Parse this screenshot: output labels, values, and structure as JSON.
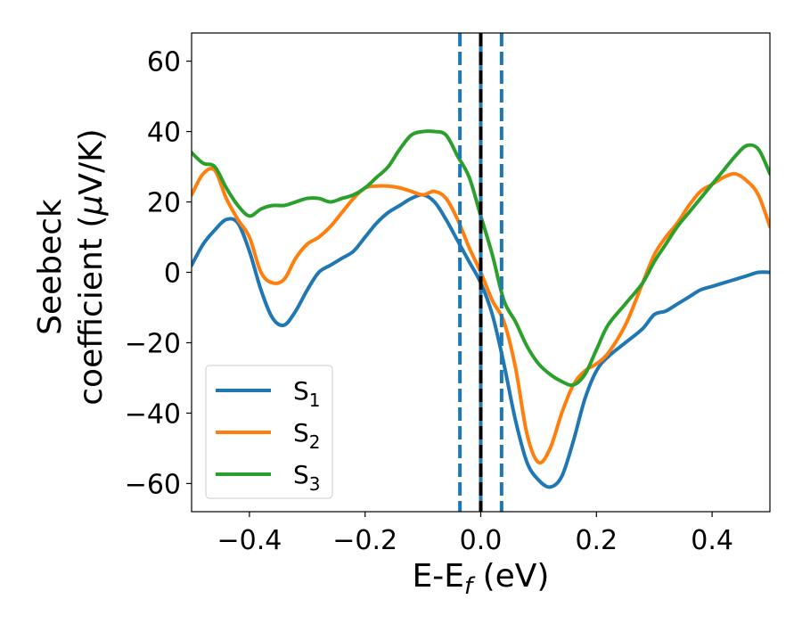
{
  "chart_data": {
    "type": "line",
    "title": "",
    "xlabel": {
      "main": "E-E",
      "sub": "f",
      "unit": " (eV)"
    },
    "ylabel": {
      "line1": "Seebeck",
      "line2_pre": "coefficient  (",
      "mu": "μ",
      "line2_post": "V/K)"
    },
    "xlim": [
      -0.5,
      0.5
    ],
    "ylim": [
      -68,
      68
    ],
    "xticks": [
      -0.4,
      -0.2,
      0.0,
      0.2,
      0.4
    ],
    "xtick_labels": [
      "−0.4",
      "−0.2",
      "0.0",
      "0.2",
      "0.4"
    ],
    "yticks": [
      60,
      40,
      20,
      0,
      -20,
      -40,
      -60
    ],
    "ytick_labels": [
      "60",
      "40",
      "20",
      "0",
      "−20",
      "−40",
      "−60"
    ],
    "grid": false,
    "legend_position": "lower-left",
    "vlines": [
      {
        "x": -0.036,
        "style": "dashed",
        "color": "#1f77b4"
      },
      {
        "x": 0.0,
        "style": "solid",
        "color": "#1f77b4"
      },
      {
        "x": 0.0,
        "style": "dashed",
        "color": "#000000"
      },
      {
        "x": 0.036,
        "style": "dashed",
        "color": "#1f77b4"
      }
    ],
    "series": [
      {
        "name": "S",
        "sub": "1",
        "color": "#1f77b4",
        "x": [
          -0.5,
          -0.48,
          -0.46,
          -0.44,
          -0.42,
          -0.4,
          -0.38,
          -0.36,
          -0.34,
          -0.32,
          -0.3,
          -0.28,
          -0.26,
          -0.24,
          -0.22,
          -0.2,
          -0.18,
          -0.16,
          -0.14,
          -0.12,
          -0.1,
          -0.08,
          -0.06,
          -0.04,
          -0.02,
          0.0,
          0.02,
          0.04,
          0.06,
          0.08,
          0.1,
          0.12,
          0.14,
          0.16,
          0.18,
          0.2,
          0.22,
          0.25,
          0.28,
          0.3,
          0.32,
          0.34,
          0.36,
          0.38,
          0.4,
          0.42,
          0.44,
          0.46,
          0.48,
          0.5
        ],
        "y": [
          2,
          8,
          12,
          15,
          14,
          6,
          -5,
          -13,
          -15,
          -11,
          -5,
          0,
          2,
          4,
          6,
          10,
          14,
          17,
          19,
          21,
          22,
          20,
          15,
          9,
          3,
          -3,
          -12,
          -26,
          -42,
          -54,
          -59,
          -61,
          -58,
          -48,
          -36,
          -28,
          -24,
          -20,
          -16,
          -12,
          -11,
          -9,
          -7,
          -5,
          -4,
          -3,
          -2,
          -1,
          0,
          0
        ]
      },
      {
        "name": "S",
        "sub": "2",
        "color": "#ff7f0e",
        "x": [
          -0.5,
          -0.48,
          -0.46,
          -0.44,
          -0.42,
          -0.4,
          -0.38,
          -0.36,
          -0.34,
          -0.32,
          -0.3,
          -0.28,
          -0.26,
          -0.24,
          -0.22,
          -0.2,
          -0.18,
          -0.16,
          -0.14,
          -0.12,
          -0.1,
          -0.08,
          -0.06,
          -0.04,
          -0.02,
          0.0,
          0.02,
          0.04,
          0.06,
          0.08,
          0.1,
          0.12,
          0.14,
          0.16,
          0.18,
          0.2,
          0.22,
          0.25,
          0.28,
          0.3,
          0.32,
          0.34,
          0.36,
          0.38,
          0.4,
          0.42,
          0.44,
          0.46,
          0.48,
          0.5
        ],
        "y": [
          22,
          28,
          29,
          21,
          15,
          10,
          0,
          -3,
          -2,
          4,
          8,
          10,
          13,
          17,
          21,
          24,
          24.5,
          24.5,
          24,
          23,
          22,
          23,
          21,
          15,
          7,
          0,
          -8,
          -14,
          -27,
          -46,
          -54,
          -50,
          -40,
          -32,
          -28,
          -26,
          -23,
          -15,
          -3,
          5,
          10,
          14,
          19,
          23,
          25,
          27,
          28,
          26,
          22,
          13
        ]
      },
      {
        "name": "S",
        "sub": "3",
        "color": "#2ca02c",
        "x": [
          -0.5,
          -0.48,
          -0.46,
          -0.44,
          -0.42,
          -0.4,
          -0.38,
          -0.36,
          -0.34,
          -0.32,
          -0.3,
          -0.28,
          -0.26,
          -0.24,
          -0.22,
          -0.2,
          -0.18,
          -0.16,
          -0.14,
          -0.12,
          -0.1,
          -0.08,
          -0.06,
          -0.04,
          -0.02,
          0.0,
          0.02,
          0.04,
          0.06,
          0.08,
          0.1,
          0.12,
          0.14,
          0.16,
          0.18,
          0.2,
          0.22,
          0.25,
          0.28,
          0.3,
          0.32,
          0.34,
          0.36,
          0.38,
          0.4,
          0.42,
          0.44,
          0.46,
          0.48,
          0.5
        ],
        "y": [
          34,
          31,
          30,
          24,
          19,
          16,
          18,
          19,
          19,
          20,
          21,
          21,
          20,
          21,
          22,
          24,
          27,
          30,
          35,
          39,
          40,
          40,
          39,
          33,
          27,
          16,
          5,
          -8,
          -14,
          -21,
          -26,
          -29,
          -31,
          -32,
          -29,
          -22,
          -15,
          -9,
          -3,
          3,
          8,
          13,
          17,
          21,
          25,
          29,
          33,
          36,
          35,
          28
        ]
      }
    ]
  }
}
